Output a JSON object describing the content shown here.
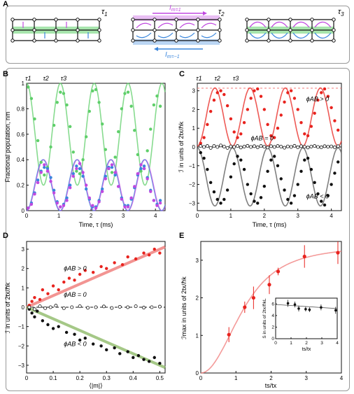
{
  "panel_labels": [
    "A",
    "B",
    "C",
    "D",
    "E"
  ],
  "panel_a": {
    "tau_labels": [
      "τ",
      "1",
      "τ",
      "2",
      "τ",
      "3"
    ],
    "current_top": "I",
    "current_top_sub": "m=1",
    "current_bottom": "I",
    "current_bottom_sub": "m=−1",
    "colors": {
      "green": "#5fcf6a",
      "magenta": "#c048e0",
      "blue": "#3a86dc",
      "line": "#111111"
    }
  },
  "chart_data": [
    {
      "id": "B",
      "type": "scatter",
      "ylabel": "Fractional population, n",
      "ylabel_sub": "m",
      "xlabel": "Time, τ (ms)",
      "xlim": [
        0,
        4.3
      ],
      "ylim": [
        0,
        1.0
      ],
      "xticks": [
        "0",
        "1",
        "2",
        "3",
        "4"
      ],
      "yticks": [
        "0",
        "0.2",
        "0.4",
        "0.6",
        "0.8",
        "1"
      ],
      "top_tau_labels": [
        "τ1",
        "τ2",
        "τ3"
      ],
      "series": [
        {
          "color": "#5fcf6a",
          "x": [
            0.05,
            0.15,
            0.25,
            0.35,
            0.45,
            0.55,
            0.65,
            0.75,
            0.85,
            0.95,
            1.05,
            1.15,
            1.25,
            1.35,
            1.45,
            1.55,
            1.65,
            1.75,
            1.85,
            1.95,
            2.05,
            2.15,
            2.25,
            2.35,
            2.45,
            2.55,
            2.65,
            2.75,
            2.85,
            2.95,
            3.05,
            3.15,
            3.25,
            3.35,
            3.45,
            3.55,
            3.65,
            3.75,
            3.85,
            3.95,
            4.05,
            4.15
          ],
          "y": [
            0.97,
            0.88,
            0.72,
            0.55,
            0.38,
            0.28,
            0.34,
            0.5,
            0.67,
            0.85,
            0.93,
            0.92,
            0.83,
            0.66,
            0.46,
            0.31,
            0.29,
            0.4,
            0.58,
            0.78,
            0.94,
            0.95,
            0.85,
            0.68,
            0.48,
            0.33,
            0.3,
            0.42,
            0.62,
            0.8,
            0.92,
            0.93,
            0.82,
            0.63,
            0.44,
            0.31,
            0.33,
            0.47,
            0.64,
            0.83,
            0.9,
            0.82
          ]
        },
        {
          "color": "#3a86dc",
          "x": [
            0.05,
            0.15,
            0.25,
            0.35,
            0.45,
            0.55,
            0.65,
            0.75,
            0.85,
            0.95,
            1.05,
            1.15,
            1.25,
            1.35,
            1.45,
            1.55,
            1.65,
            1.75,
            1.85,
            1.95,
            2.05,
            2.15,
            2.25,
            2.35,
            2.45,
            2.55,
            2.65,
            2.75,
            2.85,
            2.95,
            3.05,
            3.15,
            3.25,
            3.35,
            3.45,
            3.55,
            3.65,
            3.75,
            3.85,
            3.95,
            4.05,
            4.15
          ],
          "y": [
            0.02,
            0.06,
            0.14,
            0.24,
            0.31,
            0.34,
            0.33,
            0.26,
            0.16,
            0.07,
            0.03,
            0.05,
            0.1,
            0.2,
            0.29,
            0.35,
            0.33,
            0.27,
            0.17,
            0.09,
            0.03,
            0.03,
            0.08,
            0.17,
            0.27,
            0.34,
            0.34,
            0.28,
            0.19,
            0.1,
            0.04,
            0.04,
            0.09,
            0.18,
            0.28,
            0.33,
            0.35,
            0.26,
            0.16,
            0.08,
            0.05,
            0.08
          ]
        },
        {
          "color": "#c048e0",
          "x": [
            0.05,
            0.15,
            0.25,
            0.35,
            0.45,
            0.55,
            0.65,
            0.75,
            0.85,
            0.95,
            1.05,
            1.15,
            1.25,
            1.35,
            1.45,
            1.55,
            1.65,
            1.75,
            1.85,
            1.95,
            2.05,
            2.15,
            2.25,
            2.35,
            2.45,
            2.55,
            2.65,
            2.75,
            2.85,
            2.95,
            3.05,
            3.15,
            3.25,
            3.35,
            3.45,
            3.55,
            3.65,
            3.75,
            3.85,
            3.95,
            4.05,
            4.15
          ],
          "y": [
            0.02,
            0.05,
            0.13,
            0.22,
            0.3,
            0.36,
            0.31,
            0.23,
            0.14,
            0.06,
            0.03,
            0.04,
            0.08,
            0.18,
            0.27,
            0.33,
            0.37,
            0.3,
            0.2,
            0.1,
            0.04,
            0.02,
            0.07,
            0.15,
            0.25,
            0.33,
            0.36,
            0.3,
            0.19,
            0.09,
            0.03,
            0.03,
            0.1,
            0.19,
            0.29,
            0.36,
            0.33,
            0.25,
            0.15,
            0.08,
            0.04,
            0.06
          ]
        }
      ]
    },
    {
      "id": "C",
      "type": "scatter",
      "ylabel": "ℐ in units of 2t",
      "ylabel_rest": "x/ℏk",
      "xlabel": "Time, τ (ms)",
      "xlim": [
        0,
        4.3
      ],
      "ylim": [
        -3.4,
        3.4
      ],
      "xticks": [
        "0",
        "1",
        "2",
        "3",
        "4"
      ],
      "yticks": [
        "−3",
        "−2",
        "−1",
        "0",
        "1",
        "2",
        "3"
      ],
      "top_tau_labels": [
        "τ1",
        "τ2",
        "τ3"
      ],
      "annotations": [
        "ϕAB > 0",
        "ϕAB = 0",
        "ϕAB < 0"
      ],
      "series": [
        {
          "color": "#e8231e",
          "x": [
            0.1,
            0.2,
            0.3,
            0.4,
            0.5,
            0.6,
            0.7,
            0.8,
            0.9,
            1.0,
            1.1,
            1.2,
            1.3,
            1.4,
            1.5,
            1.6,
            1.7,
            1.8,
            1.9,
            2.0,
            2.1,
            2.2,
            2.3,
            2.4,
            2.5,
            2.6,
            2.7,
            2.8,
            2.9,
            3.0,
            3.1,
            3.2,
            3.3,
            3.4,
            3.5,
            3.6,
            3.7,
            3.8,
            3.9,
            4.0,
            4.1,
            4.2
          ],
          "y": [
            0.2,
            0.5,
            1.2,
            1.9,
            2.5,
            2.9,
            3.0,
            2.8,
            2.2,
            1.5,
            0.8,
            0.5,
            0.7,
            1.3,
            2.0,
            2.6,
            3.0,
            3.1,
            2.7,
            2.0,
            1.2,
            0.6,
            0.5,
            1.0,
            1.7,
            2.4,
            2.9,
            3.0,
            2.6,
            2.0,
            1.3,
            0.7,
            0.6,
            1.1,
            1.8,
            2.5,
            2.9,
            3.1,
            2.7,
            2.1,
            1.4,
            0.9
          ]
        },
        {
          "color": "#111111",
          "x": [
            0.1,
            0.2,
            0.3,
            0.4,
            0.5,
            0.6,
            0.7,
            0.8,
            0.9,
            1.0,
            1.1,
            1.2,
            1.3,
            1.4,
            1.5,
            1.6,
            1.7,
            1.8,
            1.9,
            2.0,
            2.1,
            2.2,
            2.3,
            2.4,
            2.5,
            2.6,
            2.7,
            2.8,
            2.9,
            3.0,
            3.1,
            3.2,
            3.3,
            3.4,
            3.5,
            3.6,
            3.7,
            3.8,
            3.9,
            4.0,
            4.1,
            4.2
          ],
          "y": [
            -0.3,
            -0.6,
            -1.2,
            -1.9,
            -2.4,
            -2.8,
            -3.0,
            -2.8,
            -2.3,
            -1.6,
            -0.9,
            -0.5,
            -0.7,
            -1.2,
            -2.0,
            -2.5,
            -2.9,
            -3.0,
            -2.7,
            -2.1,
            -1.3,
            -0.7,
            -0.5,
            -1.0,
            -1.7,
            -2.3,
            -2.8,
            -3.0,
            -2.6,
            -2.0,
            -1.3,
            -0.7,
            -0.6,
            -1.2,
            -1.9,
            -2.5,
            -2.9,
            -3.1,
            -2.6,
            -2.0,
            -1.4,
            -0.8
          ]
        },
        {
          "color": "open",
          "x": [
            0.1,
            0.2,
            0.3,
            0.4,
            0.5,
            0.6,
            0.7,
            0.8,
            0.9,
            1.0,
            1.1,
            1.2,
            1.3,
            1.4,
            1.5,
            1.6,
            1.7,
            1.8,
            1.9,
            2.0,
            2.1,
            2.2,
            2.3,
            2.4,
            2.5,
            2.6,
            2.7,
            2.8,
            2.9,
            3.0,
            3.1,
            3.2,
            3.3,
            3.4,
            3.5,
            3.6,
            3.7,
            3.8,
            3.9,
            4.0,
            4.1,
            4.2
          ],
          "y": [
            0.05,
            0.0,
            0.05,
            -0.05,
            0.05,
            0.0,
            0.08,
            0.02,
            -0.05,
            0.03,
            0.0,
            0.05,
            -0.03,
            0.02,
            0.06,
            0.0,
            0.04,
            -0.02,
            0.05,
            0.01,
            -0.03,
            0.04,
            0.0,
            0.05,
            0.02,
            -0.04,
            0.03,
            0.0,
            0.06,
            -0.02,
            0.04,
            0.01,
            -0.03,
            0.02,
            0.05,
            0.0,
            -0.02,
            0.04,
            0.01,
            0.03,
            -0.02,
            0.04
          ]
        }
      ]
    },
    {
      "id": "D",
      "type": "scatter",
      "ylabel": "ℐ in units of 2t",
      "ylabel_rest": "x/ℏk",
      "xlabel": "⟨|m|⟩",
      "xlim": [
        0,
        0.52
      ],
      "ylim": [
        -3.4,
        3.4
      ],
      "xticks": [
        "0",
        "0.1",
        "0.2",
        "0.3",
        "0.4",
        "0.5"
      ],
      "yticks": [
        "−3",
        "−2",
        "−1",
        "0",
        "1",
        "2",
        "3"
      ],
      "annotations": [
        "ϕAB > 0",
        "ϕAB = 0",
        "ϕAB < 0"
      ],
      "series": [
        {
          "color": "#e8231e",
          "x": [
            0.01,
            0.02,
            0.03,
            0.05,
            0.06,
            0.08,
            0.1,
            0.12,
            0.14,
            0.16,
            0.18,
            0.2,
            0.22,
            0.25,
            0.28,
            0.3,
            0.33,
            0.36,
            0.38,
            0.41,
            0.44,
            0.46,
            0.48,
            0.5
          ],
          "y": [
            0.1,
            0.3,
            0.5,
            0.4,
            0.9,
            0.7,
            1.1,
            0.9,
            1.3,
            1.5,
            1.4,
            1.7,
            1.9,
            1.8,
            2.1,
            2.0,
            2.3,
            2.2,
            2.6,
            2.5,
            2.8,
            2.7,
            3.0,
            2.8
          ]
        },
        {
          "color": "#111111",
          "x": [
            0.01,
            0.02,
            0.03,
            0.04,
            0.06,
            0.08,
            0.1,
            0.12,
            0.15,
            0.18,
            0.2,
            0.22,
            0.25,
            0.28,
            0.3,
            0.33,
            0.35,
            0.38,
            0.4,
            0.42,
            0.44,
            0.46,
            0.48,
            0.5
          ],
          "y": [
            -0.1,
            -0.3,
            -0.5,
            -0.2,
            -0.7,
            -0.9,
            -1.1,
            -1.0,
            -1.3,
            -1.4,
            -1.7,
            -1.6,
            -1.9,
            -2.0,
            -2.2,
            -2.1,
            -2.4,
            -2.3,
            -2.6,
            -2.5,
            -2.7,
            -2.8,
            -2.6,
            -2.9
          ]
        },
        {
          "color": "open",
          "x": [
            0.01,
            0.03,
            0.05,
            0.07,
            0.09,
            0.11,
            0.14,
            0.17,
            0.2,
            0.23,
            0.26,
            0.29,
            0.32,
            0.35,
            0.38,
            0.41,
            0.44,
            0.47,
            0.5
          ],
          "y": [
            0.0,
            -0.1,
            0.05,
            -0.05,
            0.0,
            0.08,
            -0.05,
            0.0,
            0.05,
            -0.03,
            0.0,
            0.04,
            -0.04,
            0.02,
            0.0,
            0.05,
            -0.02,
            0.0,
            0.03
          ]
        }
      ],
      "fits": [
        {
          "slope": 6.0,
          "color": "#f07a78"
        },
        {
          "slope": -6.0,
          "color": "#8fbb6a"
        }
      ]
    },
    {
      "id": "E",
      "type": "scatter",
      "ylabel": "ℐmax in units of 2t",
      "ylabel_rest": "x/ℏk",
      "xlabel": "ts/tx",
      "xlim": [
        0,
        4
      ],
      "ylim": [
        0,
        3.5
      ],
      "xticks": [
        "0",
        "1",
        "2",
        "3",
        "4"
      ],
      "yticks": [
        "0",
        "1",
        "2",
        "3"
      ],
      "points": {
        "x": [
          0.8,
          1.25,
          1.5,
          1.95,
          2.2,
          2.95,
          3.9
        ],
        "y": [
          1.02,
          1.75,
          2.0,
          2.35,
          2.7,
          3.1,
          3.2
        ],
        "err": [
          0.2,
          0.15,
          0.3,
          0.25,
          0.1,
          0.3,
          0.3
        ]
      },
      "inset": {
        "ylabel": "S in units of 2tx/ℏkL",
        "xlabel": "ts/tx",
        "xlim": [
          0,
          4
        ],
        "ylim": [
          0,
          7
        ],
        "xticks": [
          "0",
          "1",
          "2",
          "3",
          "4"
        ],
        "yticks": [
          "0",
          "2",
          "4",
          "6"
        ],
        "points": {
          "x": [
            0.8,
            1.25,
            1.5,
            1.95,
            2.2,
            2.95,
            3.9
          ],
          "y": [
            6.1,
            5.9,
            5.2,
            5.1,
            5.0,
            5.4,
            4.9
          ],
          "err": [
            0.6,
            0.5,
            0.5,
            0.4,
            0.4,
            0.5,
            0.6
          ]
        }
      }
    }
  ]
}
